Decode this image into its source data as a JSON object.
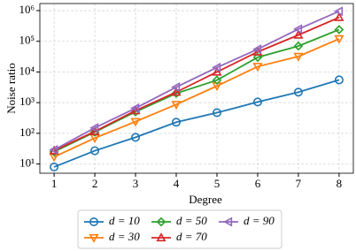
{
  "chart_data": {
    "type": "line",
    "xlabel": "Degree",
    "ylabel": "Noise ratio",
    "x": [
      1,
      2,
      3,
      4,
      5,
      6,
      7,
      8
    ],
    "xlim": [
      0.65,
      8.35
    ],
    "xticks": [
      1,
      2,
      3,
      4,
      5,
      6,
      7,
      8
    ],
    "ylim": [
      5,
      1700000
    ],
    "yscale": "log",
    "yticks": [
      {
        "value": 10,
        "label": "10¹"
      },
      {
        "value": 100,
        "label": "10²"
      },
      {
        "value": 1000,
        "label": "10³"
      },
      {
        "value": 10000,
        "label": "10⁴"
      },
      {
        "value": 100000,
        "label": "10⁵"
      },
      {
        "value": 1000000,
        "label": "10⁶"
      }
    ],
    "grid": true,
    "legend": "below",
    "series": [
      {
        "name": "d = 10",
        "color": "#1f77b4",
        "marker": "circle",
        "values": [
          8,
          27,
          74,
          230,
          470,
          1050,
          2200,
          5500
        ]
      },
      {
        "name": "d = 30",
        "color": "#ff7f0e",
        "marker": "triangle-down",
        "values": [
          17,
          70,
          240,
          870,
          3500,
          15000,
          32000,
          120000
        ]
      },
      {
        "name": "d = 50",
        "color": "#2ca02c",
        "marker": "diamond",
        "values": [
          25,
          110,
          500,
          2000,
          5400,
          30000,
          70000,
          240000
        ]
      },
      {
        "name": "d = 70",
        "color": "#d62728",
        "marker": "triangle-up",
        "values": [
          27,
          115,
          550,
          2200,
          10000,
          45000,
          160000,
          600000
        ]
      },
      {
        "name": "d = 90",
        "color": "#9467bd",
        "marker": "triangle-left",
        "values": [
          29,
          150,
          660,
          3200,
          14000,
          55000,
          250000,
          950000
        ]
      }
    ]
  }
}
